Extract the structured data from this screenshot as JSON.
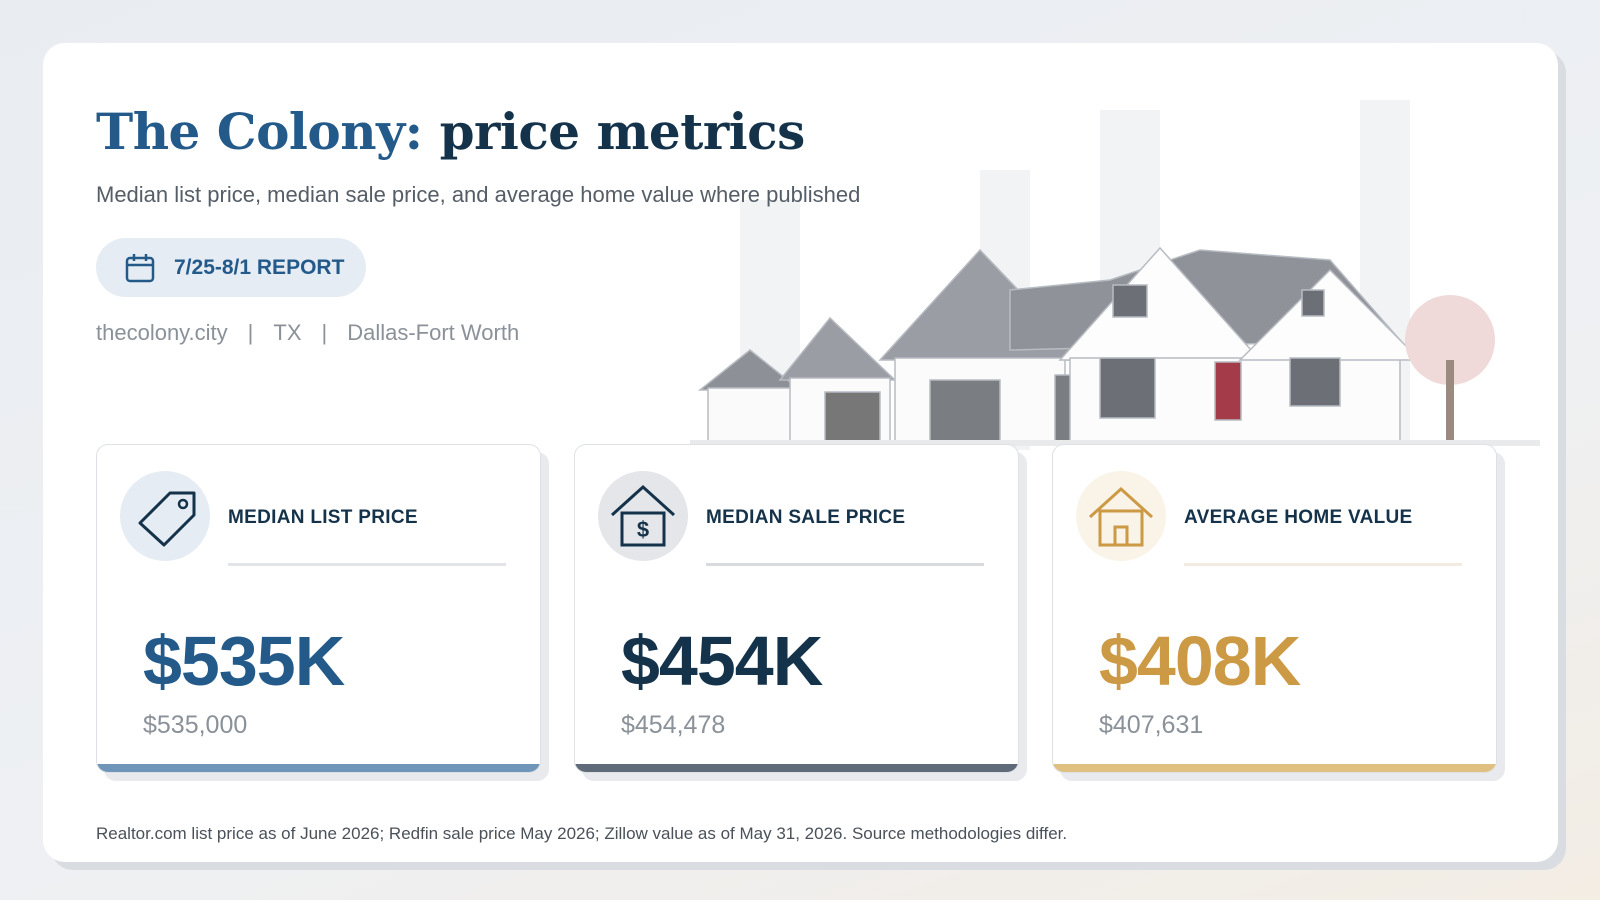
{
  "header": {
    "title_place": "The Colony:",
    "title_rest": "price metrics",
    "subtitle": "Median list price, median sale price, and average home value where published",
    "badge": "7/25-8/1 REPORT",
    "meta": [
      "thecolony.city",
      "TX",
      "Dallas-Fort Worth"
    ],
    "separator": "|"
  },
  "cards": [
    {
      "label": "MEDIAN LIST PRICE",
      "value": "$535K",
      "detail": "$535,000"
    },
    {
      "label": "MEDIAN SALE PRICE",
      "value": "$454K",
      "detail": "$454,478"
    },
    {
      "label": "AVERAGE HOME VALUE",
      "value": "$408K",
      "detail": "$407,631"
    }
  ],
  "footnote": "Realtor.com list price as of June 2026; Redfin sale price May 2026; Zillow value as of May 31, 2026. Source methodologies differ."
}
